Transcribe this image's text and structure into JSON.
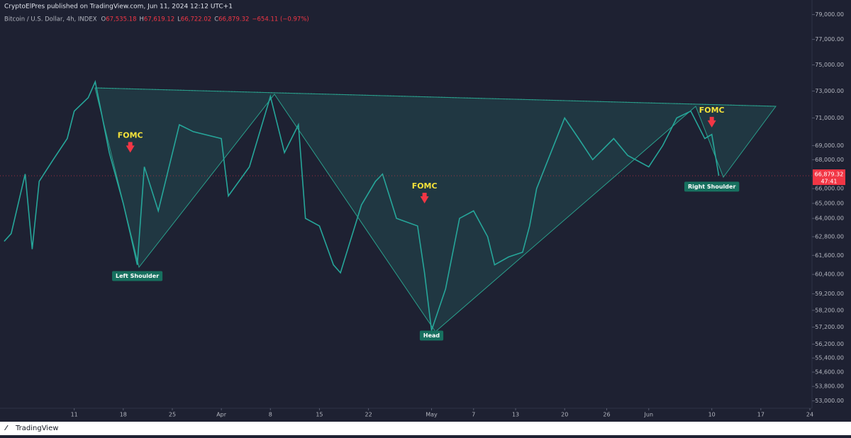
{
  "header": {
    "publisher": "CryptoElPres published on TradingView.com, Jun 11, 2024 12:12 UTC+1",
    "symbol": "Bitcoin / U.S. Dollar, 4h, INDEX",
    "ohlc": [
      {
        "key": "O",
        "value": "67,535.18"
      },
      {
        "key": "H",
        "value": "67,619.12"
      },
      {
        "key": "L",
        "value": "66,722.02"
      },
      {
        "key": "C",
        "value": "66,879.32"
      }
    ],
    "change": "−654.11 (−0.97%)"
  },
  "chart_data": {
    "type": "line",
    "x": [
      "2024-03-01",
      "2024-03-02",
      "2024-03-04",
      "2024-03-05",
      "2024-03-06",
      "2024-03-08",
      "2024-03-10",
      "2024-03-11",
      "2024-03-13",
      "2024-03-14",
      "2024-03-16",
      "2024-03-18",
      "2024-03-19",
      "2024-03-20",
      "2024-03-21",
      "2024-03-23",
      "2024-03-26",
      "2024-03-28",
      "2024-04-01",
      "2024-04-02",
      "2024-04-05",
      "2024-04-08",
      "2024-04-10",
      "2024-04-12",
      "2024-04-13",
      "2024-04-15",
      "2024-04-17",
      "2024-04-18",
      "2024-04-21",
      "2024-04-23",
      "2024-04-24",
      "2024-04-26",
      "2024-04-29",
      "2024-04-30",
      "2024-05-01",
      "2024-05-03",
      "2024-05-05",
      "2024-05-07",
      "2024-05-09",
      "2024-05-10",
      "2024-05-12",
      "2024-05-14",
      "2024-05-15",
      "2024-05-16",
      "2024-05-20",
      "2024-05-22",
      "2024-05-24",
      "2024-05-27",
      "2024-05-29",
      "2024-06-01",
      "2024-06-03",
      "2024-06-05",
      "2024-06-07",
      "2024-06-09",
      "2024-06-10",
      "2024-06-11"
    ],
    "values": [
      62500,
      63000,
      67000,
      62000,
      66500,
      68000,
      69500,
      71500,
      72500,
      73700,
      68500,
      65000,
      63000,
      61000,
      67500,
      64500,
      70500,
      70000,
      69500,
      65500,
      67500,
      72600,
      68500,
      70500,
      64000,
      63500,
      61000,
      60500,
      64900,
      66500,
      67000,
      64000,
      63500,
      60500,
      57000,
      59500,
      64000,
      64500,
      62800,
      61000,
      61500,
      61800,
      63500,
      66000,
      71000,
      69500,
      68000,
      69500,
      68300,
      67500,
      69000,
      71000,
      71500,
      69500,
      69800,
      66879.32
    ],
    "color": "#26a69a",
    "log_scale": true,
    "xlim": [
      "2024-02-29",
      "2024-06-24"
    ],
    "xticks": [
      {
        "value": "2024-03-11",
        "label": "11"
      },
      {
        "value": "2024-03-18",
        "label": "18"
      },
      {
        "value": "2024-03-25",
        "label": "25"
      },
      {
        "value": "2024-04-01",
        "label": "Apr"
      },
      {
        "value": "2024-04-08",
        "label": "8"
      },
      {
        "value": "2024-04-15",
        "label": "15"
      },
      {
        "value": "2024-04-22",
        "label": "22"
      },
      {
        "value": "2024-05-01",
        "label": "May"
      },
      {
        "value": "2024-05-07",
        "label": "7"
      },
      {
        "value": "2024-05-13",
        "label": "13"
      },
      {
        "value": "2024-05-20",
        "label": "20"
      },
      {
        "value": "2024-05-26",
        "label": "26"
      },
      {
        "value": "2024-06-01",
        "label": "Jun"
      },
      {
        "value": "2024-06-10",
        "label": "10"
      },
      {
        "value": "2024-06-17",
        "label": "17"
      },
      {
        "value": "2024-06-24",
        "label": "24"
      }
    ],
    "ylim": [
      52600,
      80200
    ],
    "yticks": [
      {
        "value": 79000,
        "label": "79,000.00"
      },
      {
        "value": 77000,
        "label": "77,000.00"
      },
      {
        "value": 75000,
        "label": "75,000.00"
      },
      {
        "value": 73000,
        "label": "73,000.00"
      },
      {
        "value": 71000,
        "label": "71,000.00"
      },
      {
        "value": 69000,
        "label": "69,000.00"
      },
      {
        "value": 68000,
        "label": "68,000.00"
      },
      {
        "value": 66000,
        "label": "66,000.00"
      },
      {
        "value": 65000,
        "label": "65,000.00"
      },
      {
        "value": 64000,
        "label": "64,000.00"
      },
      {
        "value": 62800,
        "label": "62,800.00"
      },
      {
        "value": 61600,
        "label": "61,600.00"
      },
      {
        "value": 60400,
        "label": "60,400.00"
      },
      {
        "value": 59200,
        "label": "59,200.00"
      },
      {
        "value": 58200,
        "label": "58,200.00"
      },
      {
        "value": 57200,
        "label": "57,200.00"
      },
      {
        "value": 56200,
        "label": "56,200.00"
      },
      {
        "value": 55400,
        "label": "55,400.00"
      },
      {
        "value": 54600,
        "label": "54,600.00"
      },
      {
        "value": 53800,
        "label": "53,800.00"
      },
      {
        "value": 53000,
        "label": "53,000.00"
      }
    ],
    "last_price": {
      "value": 66879.32,
      "label": "66,879.32"
    },
    "countdown": "47:41",
    "annotations": [
      {
        "text": "FOMC",
        "kind": "arrow",
        "x": "2024-03-19",
        "y": 68500
      },
      {
        "text": "FOMC",
        "kind": "arrow",
        "x": "2024-04-30",
        "y": 65000
      },
      {
        "text": "FOMC",
        "kind": "arrow",
        "x": "2024-06-10",
        "y": 70300
      },
      {
        "text": "Left Shoulder",
        "kind": "box",
        "x": "2024-03-20",
        "y": 60300
      },
      {
        "text": "Head",
        "kind": "box",
        "x": "2024-05-01",
        "y": 56700
      },
      {
        "text": "Right Shoulder",
        "kind": "box",
        "x": "2024-06-10",
        "y": 66130
      }
    ]
  },
  "footer": "TradingView"
}
